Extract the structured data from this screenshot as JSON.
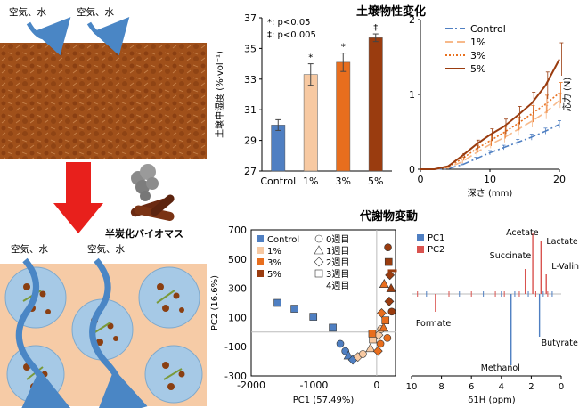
{
  "illustration": {
    "top_arrows": [
      "空気、水",
      "空気、水"
    ],
    "bottom_arrows": [
      "空気、水",
      "空気、水"
    ],
    "biomass_label": "半炭化バイオマス",
    "colors": {
      "soil_top": "#a0501a",
      "soil_bottom_bg": "#f6cba6",
      "aggregate": "#a6c9e6",
      "arrow_blue": "#4a86c5",
      "arrow_red": "#e8201c"
    }
  },
  "section_titles": {
    "soil": "土壌物性変化",
    "metabolite": "代謝物変動"
  },
  "chart_data": [
    {
      "type": "bar",
      "name": "moisture",
      "title": "",
      "ylabel": "土壌中湿度 (%·vol⁻¹)",
      "ylim": [
        27,
        37
      ],
      "yticks": [
        27,
        29,
        31,
        33,
        35,
        37
      ],
      "categories": [
        "Control",
        "1%",
        "3%",
        "5%"
      ],
      "values": [
        30.0,
        33.3,
        34.1,
        35.7
      ],
      "errors": [
        0.35,
        0.7,
        0.6,
        0.25
      ],
      "significance": [
        "",
        "*",
        "*",
        "‡"
      ],
      "colors": [
        "#4f7fc2",
        "#f7c9a2",
        "#e86e1e",
        "#9a3c0f"
      ],
      "legend_note": [
        "*: p<0.05",
        "‡: p<0.005"
      ]
    },
    {
      "type": "line",
      "name": "stress",
      "title": "",
      "xlabel": "深さ (mm)",
      "ylabel": "応力 (N)",
      "xlim": [
        0,
        20
      ],
      "ylim": [
        0,
        2
      ],
      "xticks": [
        0,
        10,
        20
      ],
      "yticks": [
        0,
        1,
        2
      ],
      "x": [
        0,
        2,
        4,
        6,
        8,
        10,
        12,
        14,
        16,
        18,
        20
      ],
      "series": [
        {
          "name": "Control",
          "color": "#4f7fc2",
          "dash": "8,3,2,3",
          "values": [
            0,
            0,
            0.01,
            0.06,
            0.14,
            0.22,
            0.29,
            0.36,
            0.43,
            0.51,
            0.6
          ],
          "err": [
            0,
            0,
            0,
            0.01,
            0.02,
            0.03,
            0.03,
            0.04,
            0.04,
            0.04,
            0.05
          ]
        },
        {
          "name": "1%",
          "color": "#f7b98a",
          "dash": "9,4",
          "values": [
            0,
            0,
            0.02,
            0.1,
            0.22,
            0.33,
            0.42,
            0.53,
            0.64,
            0.76,
            0.92
          ],
          "err": [
            0,
            0,
            0,
            0.02,
            0.04,
            0.05,
            0.06,
            0.08,
            0.08,
            0.09,
            0.1
          ]
        },
        {
          "name": "3%",
          "color": "#e8701e",
          "dash": "2,2",
          "values": [
            0,
            0,
            0.03,
            0.14,
            0.27,
            0.38,
            0.49,
            0.61,
            0.74,
            0.87,
            1.02
          ],
          "err": [
            0,
            0,
            0,
            0.02,
            0.05,
            0.07,
            0.08,
            0.09,
            0.11,
            0.12,
            0.14
          ]
        },
        {
          "name": "5%",
          "color": "#9a3c0f",
          "dash": "",
          "values": [
            0,
            0,
            0.04,
            0.18,
            0.33,
            0.46,
            0.57,
            0.72,
            0.88,
            1.12,
            1.47
          ],
          "err": [
            0,
            0,
            0,
            0.03,
            0.06,
            0.08,
            0.1,
            0.12,
            0.15,
            0.18,
            0.22
          ]
        }
      ]
    },
    {
      "type": "scatter",
      "name": "pca",
      "title": "",
      "xlabel": "PC1 (57.49%)",
      "ylabel": "PC2 (16.6%)",
      "xlim": [
        -2000,
        300
      ],
      "ylim": [
        -300,
        700
      ],
      "xticks": [
        -2000,
        -1000,
        0
      ],
      "yticks": [
        -300,
        -100,
        100,
        300,
        500,
        700
      ],
      "series": [
        {
          "name": "Control",
          "color": "#4f7fc2"
        },
        {
          "name": "1%",
          "color": "#f7c9a2"
        },
        {
          "name": "3%",
          "color": "#e86e1e"
        },
        {
          "name": "5%",
          "color": "#9a3c0f"
        }
      ],
      "shape_legend": [
        {
          "shape": "circle",
          "label": "0週目"
        },
        {
          "shape": "triangle",
          "label": "1週目"
        },
        {
          "shape": "diamond",
          "label": "2週目"
        },
        {
          "shape": "square",
          "label": "3週目"
        },
        {
          "shape": "dash",
          "label": "4週目"
        }
      ],
      "points": [
        {
          "x": -1580,
          "y": 200,
          "s": "square",
          "g": 0
        },
        {
          "x": -1310,
          "y": 160,
          "s": "square",
          "g": 0
        },
        {
          "x": -1010,
          "y": 105,
          "s": "square",
          "g": 0
        },
        {
          "x": -700,
          "y": 30,
          "s": "square",
          "g": 0
        },
        {
          "x": -580,
          "y": -80,
          "s": "circle",
          "g": 0
        },
        {
          "x": -500,
          "y": -130,
          "s": "circle",
          "g": 0
        },
        {
          "x": -450,
          "y": -160,
          "s": "triangle",
          "g": 0
        },
        {
          "x": -380,
          "y": -190,
          "s": "diamond",
          "g": 0
        },
        {
          "x": -300,
          "y": -170,
          "s": "diamond",
          "g": 1
        },
        {
          "x": -220,
          "y": -150,
          "s": "circle",
          "g": 1
        },
        {
          "x": -100,
          "y": -110,
          "s": "triangle",
          "g": 1
        },
        {
          "x": -60,
          "y": -50,
          "s": "square",
          "g": 1
        },
        {
          "x": 30,
          "y": -20,
          "s": "diamond",
          "g": 1
        },
        {
          "x": 70,
          "y": 20,
          "s": "circle",
          "g": 1
        },
        {
          "x": -70,
          "y": -10,
          "s": "square",
          "g": 2
        },
        {
          "x": 20,
          "y": -130,
          "s": "diamond",
          "g": 2
        },
        {
          "x": 60,
          "y": -80,
          "s": "circle",
          "g": 2
        },
        {
          "x": 110,
          "y": 30,
          "s": "triangle",
          "g": 2
        },
        {
          "x": 140,
          "y": 80,
          "s": "square",
          "g": 2
        },
        {
          "x": 170,
          "y": -40,
          "s": "circle",
          "g": 2
        },
        {
          "x": 200,
          "y": 210,
          "s": "diamond",
          "g": 3
        },
        {
          "x": 230,
          "y": 300,
          "s": "triangle",
          "g": 3
        },
        {
          "x": 210,
          "y": 390,
          "s": "diamond",
          "g": 3
        },
        {
          "x": 190,
          "y": 480,
          "s": "square",
          "g": 3
        },
        {
          "x": 180,
          "y": 580,
          "s": "circle",
          "g": 3
        },
        {
          "x": 240,
          "y": 140,
          "s": "circle",
          "g": 3
        },
        {
          "x": 250,
          "y": 420,
          "s": "dash",
          "g": 3
        },
        {
          "x": 120,
          "y": 330,
          "s": "triangle",
          "g": 2
        },
        {
          "x": 80,
          "y": 130,
          "s": "diamond",
          "g": 2
        }
      ]
    },
    {
      "type": "line",
      "name": "nmr",
      "title": "",
      "xlabel": "δ1H (ppm)",
      "xticks": [
        10,
        8,
        6,
        4,
        2,
        0
      ],
      "series": [
        {
          "name": "PC1",
          "color": "#4f7fc2"
        },
        {
          "name": "PC2",
          "color": "#d9534f"
        }
      ],
      "annotations": [
        "Acetate",
        "Lactate",
        "Succinate",
        "L-Valine",
        "Formate",
        "Butyrate",
        "Methanol"
      ]
    }
  ]
}
